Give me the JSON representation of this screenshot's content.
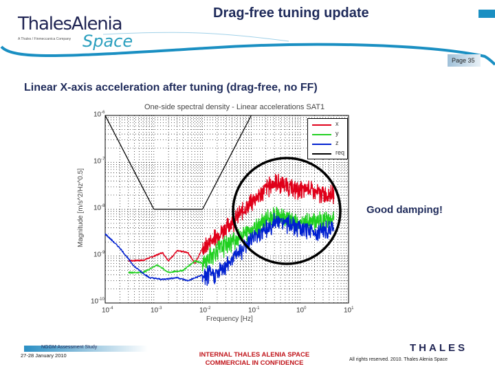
{
  "header": {
    "logo_main": "ThalesAlenia",
    "logo_tagline": "A Thales / Finmeccanica Company",
    "logo_space": "Space",
    "title": "Drag-free tuning update",
    "page": "Page 35"
  },
  "slide": {
    "subtitle": "Linear X-axis acceleration after tuning (drag-free, no FF)",
    "annotation": "Good damping!"
  },
  "chart_data": {
    "type": "line",
    "title": "One-side spectral density - Linear accelerations SAT1",
    "xlabel": "Frequency [Hz]",
    "ylabel": "Magnitude [m/s^2/Hz^0.5]",
    "xscale": "log",
    "yscale": "log",
    "xlim": [
      0.0001,
      10
    ],
    "ylim": [
      1e-10,
      1e-06
    ],
    "grid": true,
    "legend_position": "upper right (inside)",
    "x_ticks": [
      "10^-4",
      "10^-3",
      "10^-2",
      "10^-1",
      "10^0",
      "10^1"
    ],
    "y_ticks": [
      "10^-6",
      "10^-7",
      "10^-8",
      "10^-9",
      "10^-10"
    ],
    "series": [
      {
        "name": "x",
        "color": "#e0001a",
        "points": [
          [
            0.0003,
            8e-10
          ],
          [
            0.0006,
            8.2e-10
          ],
          [
            0.001,
            1e-09
          ],
          [
            0.0015,
            1.2e-09
          ],
          [
            0.002,
            8e-10
          ],
          [
            0.003,
            1.3e-09
          ],
          [
            0.005,
            1.2e-09
          ],
          [
            0.007,
            7e-10
          ],
          [
            0.01,
            1.5e-09
          ],
          [
            0.02,
            3e-09
          ],
          [
            0.05,
            7e-09
          ],
          [
            0.1,
            1.5e-08
          ],
          [
            0.2,
            3e-08
          ],
          [
            0.3,
            4e-08
          ],
          [
            0.5,
            3.5e-08
          ],
          [
            1,
            2.6e-08
          ],
          [
            1.5,
            3e-08
          ],
          [
            2,
            2.4e-08
          ],
          [
            5,
            2.2e-08
          ]
        ]
      },
      {
        "name": "y",
        "color": "#20d020",
        "points": [
          [
            0.0003,
            4.5e-10
          ],
          [
            0.0006,
            4.5e-10
          ],
          [
            0.001,
            6e-10
          ],
          [
            0.0012,
            6.5e-10
          ],
          [
            0.002,
            4.5e-10
          ],
          [
            0.004,
            5e-10
          ],
          [
            0.007,
            8e-10
          ],
          [
            0.01,
            7e-10
          ],
          [
            0.02,
            1.5e-09
          ],
          [
            0.05,
            2.5e-09
          ],
          [
            0.1,
            4e-09
          ],
          [
            0.2,
            6.5e-09
          ],
          [
            0.3,
            7.5e-09
          ],
          [
            0.5,
            7e-09
          ],
          [
            1,
            5e-09
          ],
          [
            2,
            6e-09
          ],
          [
            5,
            6.5e-09
          ]
        ]
      },
      {
        "name": "z",
        "color": "#0020d0",
        "points": [
          [
            0.0001,
            3e-09
          ],
          [
            0.0002,
            1.5e-09
          ],
          [
            0.0004,
            6e-10
          ],
          [
            0.0008,
            3.5e-10
          ],
          [
            0.0015,
            3.2e-10
          ],
          [
            0.003,
            3.5e-10
          ],
          [
            0.005,
            3e-10
          ],
          [
            0.01,
            4e-10
          ],
          [
            0.02,
            4.5e-10
          ],
          [
            0.05,
            1.2e-09
          ],
          [
            0.1,
            2.5e-09
          ],
          [
            0.2,
            4e-09
          ],
          [
            0.3,
            5.5e-09
          ],
          [
            0.5,
            5.5e-09
          ],
          [
            1,
            4e-09
          ],
          [
            2,
            3.5e-09
          ],
          [
            5,
            4e-09
          ]
        ]
      },
      {
        "name": "req",
        "color": "#000000",
        "points": [
          [
            0.0001,
            1e-06
          ],
          [
            0.001,
            1e-08
          ],
          [
            0.01,
            1e-08
          ],
          [
            0.1,
            1e-06
          ]
        ]
      }
    ],
    "annotations": [
      {
        "type": "circle",
        "label": "highlight region 0.03–5 Hz"
      },
      {
        "type": "text",
        "text": "Good damping!"
      }
    ]
  },
  "legend": {
    "items": [
      {
        "label": "x",
        "color": "#e0001a"
      },
      {
        "label": "y",
        "color": "#20d020"
      },
      {
        "label": "z",
        "color": "#0020d0"
      },
      {
        "label": "req",
        "color": "#000000"
      }
    ]
  },
  "footer": {
    "study": "NGGM Assessment Study",
    "date": "27-28 January 2010",
    "confidential_line1": "INTERNAL THALES ALENIA SPACE",
    "confidential_line2": "COMMERCIAL IN CONFIDENCE",
    "brand": "THALES",
    "rights": "All rights reserved. 2010. Thales Alenia Space"
  }
}
